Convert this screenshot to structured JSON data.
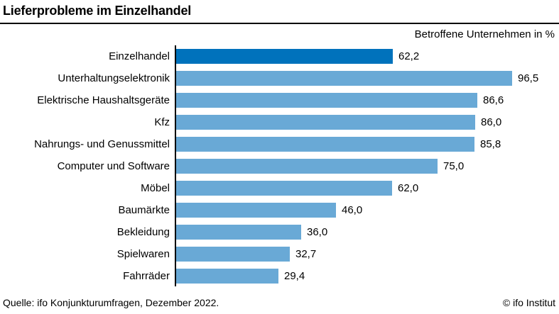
{
  "title": "Lieferprobleme im Einzelhandel",
  "subtitle": "Betroffene Unternehmen in %",
  "footer": {
    "source": "Quelle: ifo Konjunkturumfragen, Dezember 2022.",
    "copyright": "© ifo Institut"
  },
  "colors": {
    "highlight_bar": "#0072bc",
    "default_bar": "#69a9d6",
    "axis": "#000000",
    "text": "#000000"
  },
  "chart_data": {
    "type": "bar",
    "orientation": "horizontal",
    "title": "Lieferprobleme im Einzelhandel",
    "subtitle": "Betroffene Unternehmen in %",
    "xlabel": "Betroffene Unternehmen in %",
    "ylabel": "",
    "xlim": [
      0,
      100
    ],
    "grid": false,
    "legend": false,
    "highlight_index": 0,
    "categories": [
      "Einzelhandel",
      "Unterhaltungselektronik",
      "Elektrische Haushaltsgeräte",
      "Kfz",
      "Nahrungs- und Genussmittel",
      "Computer und Software",
      "Möbel",
      "Baumärkte",
      "Bekleidung",
      "Spielwaren",
      "Fahrräder"
    ],
    "values": [
      62.2,
      96.5,
      86.6,
      86.0,
      85.8,
      75.0,
      62.0,
      46.0,
      36.0,
      32.7,
      29.4
    ],
    "value_labels": [
      "62,2",
      "96,5",
      "86,6",
      "86,0",
      "85,8",
      "75,0",
      "62,0",
      "46,0",
      "36,0",
      "32,7",
      "29,4"
    ]
  }
}
